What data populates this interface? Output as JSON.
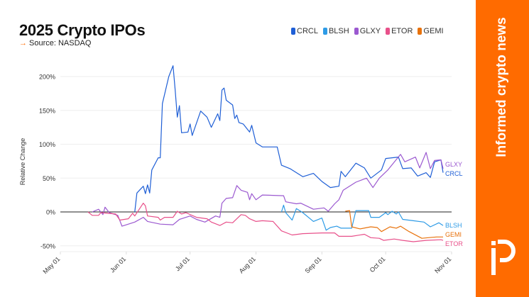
{
  "header": {
    "title": "2025 Crypto IPOs",
    "source_arrow": "→",
    "source": "Source: NASDAQ"
  },
  "sidebar": {
    "tagline": "Informed crypto news",
    "logo_text": "iP",
    "color": "#ff6b00"
  },
  "chart_data": {
    "type": "line",
    "title": "2025 Crypto IPOs",
    "ylabel": "Relative Change",
    "xlabel": "",
    "ylim": [
      -55,
      220
    ],
    "xlim": [
      "2025-05-01",
      "2025-11-01"
    ],
    "yticks": [
      {
        "v": 200,
        "label": "200%"
      },
      {
        "v": 150,
        "label": "150%"
      },
      {
        "v": 100,
        "label": "100%"
      },
      {
        "v": 50,
        "label": "50%"
      },
      {
        "v": 0,
        "label": "0%"
      },
      {
        "v": -50,
        "label": "-50%"
      }
    ],
    "xticks": [
      {
        "d": "2025-05-01",
        "label": "May 01"
      },
      {
        "d": "2025-06-01",
        "label": "Jun 01"
      },
      {
        "d": "2025-07-01",
        "label": "Jul 01"
      },
      {
        "d": "2025-08-01",
        "label": "Aug 01"
      },
      {
        "d": "2025-09-01",
        "label": "Sep 01"
      },
      {
        "d": "2025-10-01",
        "label": "Oct 01"
      },
      {
        "d": "2025-11-01",
        "label": "Nov 01"
      }
    ],
    "grid": true,
    "legend_placement": "top-right",
    "series": [
      {
        "name": "CRCL",
        "color": "#1f5fd6",
        "points": [
          [
            "2025-06-05",
            0
          ],
          [
            "2025-06-06",
            28
          ],
          [
            "2025-06-09",
            38
          ],
          [
            "2025-06-10",
            27
          ],
          [
            "2025-06-11",
            40
          ],
          [
            "2025-06-12",
            28
          ],
          [
            "2025-06-13",
            62
          ],
          [
            "2025-06-16",
            80
          ],
          [
            "2025-06-17",
            80
          ],
          [
            "2025-06-18",
            160
          ],
          [
            "2025-06-21",
            200
          ],
          [
            "2025-06-23",
            216
          ],
          [
            "2025-06-24",
            180
          ],
          [
            "2025-06-25",
            140
          ],
          [
            "2025-06-26",
            157
          ],
          [
            "2025-06-27",
            117
          ],
          [
            "2025-06-30",
            118
          ],
          [
            "2025-07-01",
            130
          ],
          [
            "2025-07-02",
            113
          ],
          [
            "2025-07-06",
            149
          ],
          [
            "2025-07-09",
            140
          ],
          [
            "2025-07-11",
            125
          ],
          [
            "2025-07-14",
            145
          ],
          [
            "2025-07-15",
            135
          ],
          [
            "2025-07-16",
            180
          ],
          [
            "2025-07-17",
            183
          ],
          [
            "2025-07-18",
            165
          ],
          [
            "2025-07-21",
            158
          ],
          [
            "2025-07-22",
            138
          ],
          [
            "2025-07-23",
            143
          ],
          [
            "2025-07-24",
            132
          ],
          [
            "2025-07-26",
            130
          ],
          [
            "2025-07-29",
            118
          ],
          [
            "2025-07-30",
            128
          ],
          [
            "2025-08-01",
            102
          ],
          [
            "2025-08-04",
            96
          ],
          [
            "2025-08-11",
            96
          ],
          [
            "2025-08-13",
            69
          ],
          [
            "2025-08-17",
            64
          ],
          [
            "2025-08-23",
            52
          ],
          [
            "2025-08-28",
            57
          ],
          [
            "2025-09-01",
            45
          ],
          [
            "2025-09-05",
            36
          ],
          [
            "2025-09-09",
            38
          ],
          [
            "2025-09-10",
            60
          ],
          [
            "2025-09-12",
            52
          ],
          [
            "2025-09-17",
            72
          ],
          [
            "2025-09-21",
            65
          ],
          [
            "2025-09-24",
            50
          ],
          [
            "2025-09-29",
            62
          ],
          [
            "2025-10-01",
            79
          ],
          [
            "2025-10-07",
            81
          ],
          [
            "2025-10-09",
            64
          ],
          [
            "2025-10-13",
            65
          ],
          [
            "2025-10-16",
            53
          ],
          [
            "2025-10-20",
            58
          ],
          [
            "2025-10-22",
            51
          ],
          [
            "2025-10-24",
            74
          ],
          [
            "2025-10-27",
            77
          ],
          [
            "2025-10-28",
            58
          ]
        ]
      },
      {
        "name": "BLSH",
        "color": "#2e9be6",
        "points": [
          [
            "2025-08-13",
            0
          ],
          [
            "2025-08-14",
            10
          ],
          [
            "2025-08-15",
            -1
          ],
          [
            "2025-08-18",
            -12
          ],
          [
            "2025-08-20",
            5
          ],
          [
            "2025-08-23",
            -1
          ],
          [
            "2025-08-28",
            -14
          ],
          [
            "2025-09-01",
            -9
          ],
          [
            "2025-09-03",
            -27
          ],
          [
            "2025-09-05",
            -23
          ],
          [
            "2025-09-08",
            -21
          ],
          [
            "2025-09-10",
            -24
          ],
          [
            "2025-09-15",
            -24
          ],
          [
            "2025-09-17",
            2
          ],
          [
            "2025-09-23",
            2
          ],
          [
            "2025-09-24",
            -8
          ],
          [
            "2025-09-28",
            -8
          ],
          [
            "2025-10-01",
            -1
          ],
          [
            "2025-10-02",
            -4
          ],
          [
            "2025-10-04",
            1
          ],
          [
            "2025-10-06",
            -3
          ],
          [
            "2025-10-07",
            0
          ],
          [
            "2025-10-09",
            -11
          ],
          [
            "2025-10-14",
            -13
          ],
          [
            "2025-10-19",
            -15
          ],
          [
            "2025-10-22",
            -22
          ],
          [
            "2025-10-26",
            -16
          ],
          [
            "2025-10-28",
            -20
          ]
        ]
      },
      {
        "name": "GLXY",
        "color": "#9b59d0",
        "points": [
          [
            "2025-05-16",
            0
          ],
          [
            "2025-05-19",
            4
          ],
          [
            "2025-05-21",
            -4
          ],
          [
            "2025-05-22",
            7
          ],
          [
            "2025-05-24",
            -1
          ],
          [
            "2025-05-28",
            -5
          ],
          [
            "2025-05-30",
            -21
          ],
          [
            "2025-06-02",
            -18
          ],
          [
            "2025-06-05",
            -15
          ],
          [
            "2025-06-09",
            -8
          ],
          [
            "2025-06-11",
            -14
          ],
          [
            "2025-06-17",
            -18
          ],
          [
            "2025-06-23",
            -19
          ],
          [
            "2025-06-26",
            -11
          ],
          [
            "2025-07-01",
            -6
          ],
          [
            "2025-07-04",
            -11
          ],
          [
            "2025-07-08",
            -15
          ],
          [
            "2025-07-13",
            -6
          ],
          [
            "2025-07-15",
            -8
          ],
          [
            "2025-07-16",
            13
          ],
          [
            "2025-07-18",
            20
          ],
          [
            "2025-07-21",
            21
          ],
          [
            "2025-07-23",
            39
          ],
          [
            "2025-07-25",
            32
          ],
          [
            "2025-07-28",
            29
          ],
          [
            "2025-07-29",
            18
          ],
          [
            "2025-07-30",
            27
          ],
          [
            "2025-08-01",
            18
          ],
          [
            "2025-08-04",
            25
          ],
          [
            "2025-08-14",
            24
          ],
          [
            "2025-08-15",
            15
          ],
          [
            "2025-08-20",
            12
          ],
          [
            "2025-08-22",
            13
          ],
          [
            "2025-08-28",
            4
          ],
          [
            "2025-09-02",
            6
          ],
          [
            "2025-09-04",
            1
          ],
          [
            "2025-09-07",
            12
          ],
          [
            "2025-09-09",
            18
          ],
          [
            "2025-09-11",
            32
          ],
          [
            "2025-09-17",
            44
          ],
          [
            "2025-09-22",
            50
          ],
          [
            "2025-09-25",
            36
          ],
          [
            "2025-09-28",
            50
          ],
          [
            "2025-10-02",
            62
          ],
          [
            "2025-10-08",
            85
          ],
          [
            "2025-10-10",
            74
          ],
          [
            "2025-10-15",
            81
          ],
          [
            "2025-10-17",
            65
          ],
          [
            "2025-10-20",
            88
          ],
          [
            "2025-10-22",
            64
          ],
          [
            "2025-10-24",
            76
          ],
          [
            "2025-10-27",
            77
          ],
          [
            "2025-10-28",
            64
          ]
        ]
      },
      {
        "name": "ETOR",
        "color": "#e8508a",
        "points": [
          [
            "2025-05-14",
            0
          ],
          [
            "2025-05-16",
            -5
          ],
          [
            "2025-05-19",
            -5
          ],
          [
            "2025-05-20",
            -1
          ],
          [
            "2025-05-27",
            -3
          ],
          [
            "2025-05-29",
            -12
          ],
          [
            "2025-06-02",
            -10
          ],
          [
            "2025-06-04",
            -2
          ],
          [
            "2025-06-05",
            -6
          ],
          [
            "2025-06-09",
            13
          ],
          [
            "2025-06-10",
            9
          ],
          [
            "2025-06-11",
            -6
          ],
          [
            "2025-06-16",
            -8
          ],
          [
            "2025-06-17",
            -12
          ],
          [
            "2025-06-19",
            -8
          ],
          [
            "2025-06-23",
            -8
          ],
          [
            "2025-06-25",
            1
          ],
          [
            "2025-06-27",
            -3
          ],
          [
            "2025-06-29",
            -1
          ],
          [
            "2025-07-04",
            -8
          ],
          [
            "2025-07-09",
            -10
          ],
          [
            "2025-07-11",
            -15
          ],
          [
            "2025-07-15",
            -20
          ],
          [
            "2025-07-18",
            -15
          ],
          [
            "2025-07-21",
            -16
          ],
          [
            "2025-07-25",
            -4
          ],
          [
            "2025-07-27",
            -5
          ],
          [
            "2025-07-29",
            -10
          ],
          [
            "2025-08-01",
            -14
          ],
          [
            "2025-08-04",
            -13
          ],
          [
            "2025-08-09",
            -14
          ],
          [
            "2025-08-13",
            -28
          ],
          [
            "2025-08-18",
            -34
          ],
          [
            "2025-08-23",
            -32
          ],
          [
            "2025-09-01",
            -31
          ],
          [
            "2025-09-07",
            -31
          ],
          [
            "2025-09-09",
            -36
          ],
          [
            "2025-09-15",
            -36
          ],
          [
            "2025-09-21",
            -33
          ],
          [
            "2025-09-24",
            -38
          ],
          [
            "2025-09-28",
            -39
          ],
          [
            "2025-09-30",
            -42
          ],
          [
            "2025-10-05",
            -40
          ],
          [
            "2025-10-09",
            -42
          ],
          [
            "2025-10-14",
            -44
          ],
          [
            "2025-10-20",
            -42
          ],
          [
            "2025-10-27",
            -41
          ],
          [
            "2025-10-28",
            -42
          ]
        ]
      },
      {
        "name": "GEMI",
        "color": "#e8720c",
        "points": [
          [
            "2025-09-12",
            1
          ],
          [
            "2025-09-14",
            2
          ],
          [
            "2025-09-15",
            -22
          ],
          [
            "2025-09-19",
            -25
          ],
          [
            "2025-09-24",
            -22
          ],
          [
            "2025-09-27",
            -23
          ],
          [
            "2025-09-29",
            -29
          ],
          [
            "2025-10-03",
            -22
          ],
          [
            "2025-10-06",
            -24
          ],
          [
            "2025-10-08",
            -21
          ],
          [
            "2025-10-12",
            -29
          ],
          [
            "2025-10-18",
            -39
          ],
          [
            "2025-10-21",
            -38
          ],
          [
            "2025-10-25",
            -37
          ],
          [
            "2025-10-28",
            -37
          ]
        ]
      }
    ],
    "end_labels": [
      {
        "series": "GLXY",
        "label": "GLXY"
      },
      {
        "series": "CRCL",
        "label": "CRCL"
      },
      {
        "series": "BLSH",
        "label": "BLSH"
      },
      {
        "series": "GEMI",
        "label": "GEMI"
      },
      {
        "series": "ETOR",
        "label": "ETOR"
      }
    ]
  }
}
